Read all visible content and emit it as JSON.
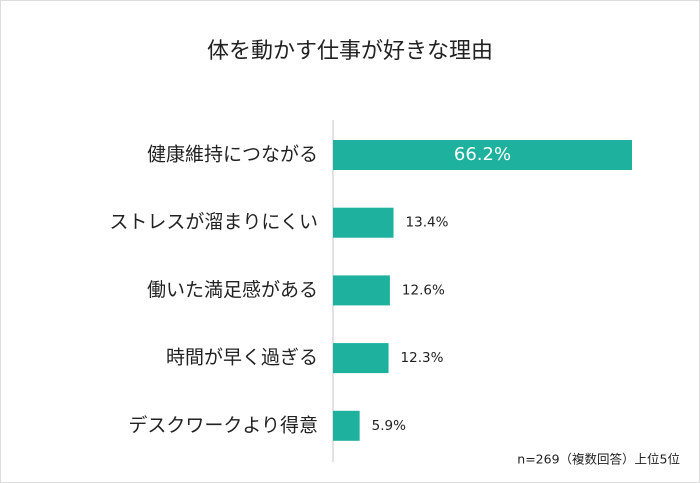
{
  "chart_data": {
    "type": "bar",
    "orientation": "horizontal",
    "title": "体を動かす仕事が好きな理由",
    "categories": [
      "健康維持につながる",
      "ストレスが溜まりにくい",
      "働いた満足感がある",
      "時間が早く過ぎる",
      "デスクワークより得意"
    ],
    "values": [
      66.2,
      13.4,
      12.6,
      12.3,
      5.9
    ],
    "value_labels": [
      "66.2%",
      "13.4%",
      "12.6%",
      "12.3%",
      "5.9%"
    ],
    "color": "#1db19e",
    "note": "n=269（複数回答）上位5位"
  }
}
